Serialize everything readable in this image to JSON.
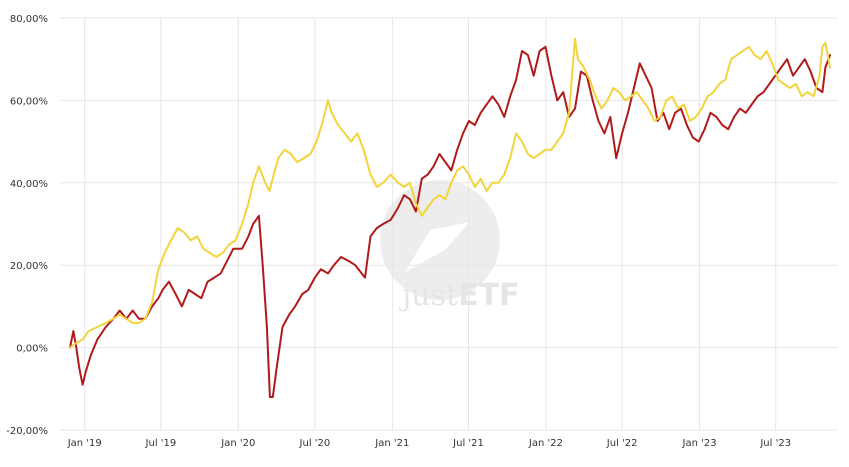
{
  "colors": {
    "series_red": "#b01a1a",
    "series_yellow": "#f2d43d",
    "grid": "#e6e6e6"
  },
  "watermark": {
    "prefix": "just",
    "suffix": "ETF"
  },
  "chart_data": {
    "type": "line",
    "title": "",
    "xlabel": "",
    "ylabel": "",
    "ylim": [
      -20,
      80
    ],
    "x_range": [
      "2018-11-27",
      "2023-11-07"
    ],
    "grid": true,
    "y_ticks": [
      {
        "value": 80,
        "label": "80,00%"
      },
      {
        "value": 60,
        "label": "60,00%"
      },
      {
        "value": 40,
        "label": "40,00%"
      },
      {
        "value": 20,
        "label": "20,00%"
      },
      {
        "value": 0,
        "label": "0,00%"
      },
      {
        "value": -20,
        "label": "-20,00%"
      }
    ],
    "x_ticks": [
      {
        "date": "2019-01-01",
        "label": "Jan '19"
      },
      {
        "date": "2019-07-01",
        "label": "Jul '19"
      },
      {
        "date": "2020-01-01",
        "label": "Jan '20"
      },
      {
        "date": "2020-07-01",
        "label": "Jul '20"
      },
      {
        "date": "2021-01-01",
        "label": "Jan '21"
      },
      {
        "date": "2021-07-01",
        "label": "Jul '21"
      },
      {
        "date": "2022-01-01",
        "label": "Jan '22"
      },
      {
        "date": "2022-07-01",
        "label": "Jul '22"
      },
      {
        "date": "2023-01-01",
        "label": "Jan '23"
      },
      {
        "date": "2023-07-01",
        "label": "Jul '23"
      }
    ],
    "series": [
      {
        "color": "#b01a1a",
        "points": [
          [
            "2018-11-27",
            0
          ],
          [
            "2018-12-05",
            4
          ],
          [
            "2018-12-12",
            0
          ],
          [
            "2018-12-19",
            -5
          ],
          [
            "2018-12-27",
            -9
          ],
          [
            "2019-01-03",
            -6
          ],
          [
            "2019-01-15",
            -2
          ],
          [
            "2019-01-31",
            2
          ],
          [
            "2019-02-20",
            5
          ],
          [
            "2019-03-10",
            7
          ],
          [
            "2019-03-25",
            9
          ],
          [
            "2019-04-10",
            7
          ],
          [
            "2019-04-25",
            9
          ],
          [
            "2019-05-10",
            7
          ],
          [
            "2019-05-25",
            7
          ],
          [
            "2019-06-10",
            10
          ],
          [
            "2019-06-25",
            12
          ],
          [
            "2019-07-05",
            14
          ],
          [
            "2019-07-20",
            16
          ],
          [
            "2019-08-05",
            13
          ],
          [
            "2019-08-20",
            10
          ],
          [
            "2019-09-05",
            14
          ],
          [
            "2019-09-20",
            13
          ],
          [
            "2019-10-05",
            12
          ],
          [
            "2019-10-20",
            16
          ],
          [
            "2019-11-05",
            17
          ],
          [
            "2019-11-20",
            18
          ],
          [
            "2019-12-05",
            21
          ],
          [
            "2019-12-20",
            24
          ],
          [
            "2020-01-10",
            24
          ],
          [
            "2020-01-25",
            27
          ],
          [
            "2020-02-05",
            30
          ],
          [
            "2020-02-19",
            32
          ],
          [
            "2020-02-28",
            20
          ],
          [
            "2020-03-09",
            5
          ],
          [
            "2020-03-16",
            -12
          ],
          [
            "2020-03-23",
            -12
          ],
          [
            "2020-04-01",
            -5
          ],
          [
            "2020-04-15",
            5
          ],
          [
            "2020-05-01",
            8
          ],
          [
            "2020-05-15",
            10
          ],
          [
            "2020-06-01",
            13
          ],
          [
            "2020-06-15",
            14
          ],
          [
            "2020-07-01",
            17
          ],
          [
            "2020-07-15",
            19
          ],
          [
            "2020-08-01",
            18
          ],
          [
            "2020-08-15",
            20
          ],
          [
            "2020-09-01",
            22
          ],
          [
            "2020-09-20",
            21
          ],
          [
            "2020-10-05",
            20
          ],
          [
            "2020-10-28",
            17
          ],
          [
            "2020-11-10",
            27
          ],
          [
            "2020-11-25",
            29
          ],
          [
            "2020-12-10",
            30
          ],
          [
            "2020-12-28",
            31
          ],
          [
            "2021-01-15",
            34
          ],
          [
            "2021-01-29",
            37
          ],
          [
            "2021-02-12",
            36
          ],
          [
            "2021-02-26",
            33
          ],
          [
            "2021-03-12",
            41
          ],
          [
            "2021-03-26",
            42
          ],
          [
            "2021-04-09",
            44
          ],
          [
            "2021-04-23",
            47
          ],
          [
            "2021-05-07",
            45
          ],
          [
            "2021-05-21",
            43
          ],
          [
            "2021-06-04",
            48
          ],
          [
            "2021-06-18",
            52
          ],
          [
            "2021-07-02",
            55
          ],
          [
            "2021-07-16",
            54
          ],
          [
            "2021-07-30",
            57
          ],
          [
            "2021-08-13",
            59
          ],
          [
            "2021-08-27",
            61
          ],
          [
            "2021-09-10",
            59
          ],
          [
            "2021-09-24",
            56
          ],
          [
            "2021-10-08",
            61
          ],
          [
            "2021-10-22",
            65
          ],
          [
            "2021-11-05",
            72
          ],
          [
            "2021-11-19",
            71
          ],
          [
            "2021-12-03",
            66
          ],
          [
            "2021-12-17",
            72
          ],
          [
            "2021-12-31",
            73
          ],
          [
            "2022-01-14",
            66
          ],
          [
            "2022-01-28",
            60
          ],
          [
            "2022-02-11",
            62
          ],
          [
            "2022-02-25",
            56
          ],
          [
            "2022-03-11",
            58
          ],
          [
            "2022-03-25",
            67
          ],
          [
            "2022-04-08",
            66
          ],
          [
            "2022-04-22",
            60
          ],
          [
            "2022-05-06",
            55
          ],
          [
            "2022-05-20",
            52
          ],
          [
            "2022-06-03",
            56
          ],
          [
            "2022-06-17",
            46
          ],
          [
            "2022-07-01",
            52
          ],
          [
            "2022-07-15",
            57
          ],
          [
            "2022-07-29",
            63
          ],
          [
            "2022-08-12",
            69
          ],
          [
            "2022-08-26",
            66
          ],
          [
            "2022-09-09",
            63
          ],
          [
            "2022-09-23",
            55
          ],
          [
            "2022-10-07",
            57
          ],
          [
            "2022-10-21",
            53
          ],
          [
            "2022-11-04",
            57
          ],
          [
            "2022-11-18",
            58
          ],
          [
            "2022-12-02",
            54
          ],
          [
            "2022-12-16",
            51
          ],
          [
            "2022-12-30",
            50
          ],
          [
            "2023-01-13",
            53
          ],
          [
            "2023-01-27",
            57
          ],
          [
            "2023-02-10",
            56
          ],
          [
            "2023-02-24",
            54
          ],
          [
            "2023-03-10",
            53
          ],
          [
            "2023-03-24",
            56
          ],
          [
            "2023-04-07",
            58
          ],
          [
            "2023-04-21",
            57
          ],
          [
            "2023-05-05",
            59
          ],
          [
            "2023-05-19",
            61
          ],
          [
            "2023-06-02",
            62
          ],
          [
            "2023-06-16",
            64
          ],
          [
            "2023-06-30",
            66
          ],
          [
            "2023-07-14",
            68
          ],
          [
            "2023-07-28",
            70
          ],
          [
            "2023-08-11",
            66
          ],
          [
            "2023-08-25",
            68
          ],
          [
            "2023-09-08",
            70
          ],
          [
            "2023-09-22",
            67
          ],
          [
            "2023-10-06",
            63
          ],
          [
            "2023-10-20",
            62
          ],
          [
            "2023-10-27",
            68
          ],
          [
            "2023-11-07",
            71
          ]
        ]
      },
      {
        "color": "#f2d43d",
        "points": [
          [
            "2018-11-27",
            0
          ],
          [
            "2018-12-10",
            1
          ],
          [
            "2018-12-27",
            2
          ],
          [
            "2019-01-10",
            4
          ],
          [
            "2019-01-31",
            5
          ],
          [
            "2019-02-20",
            6
          ],
          [
            "2019-03-10",
            7
          ],
          [
            "2019-03-25",
            8
          ],
          [
            "2019-04-10",
            7
          ],
          [
            "2019-04-25",
            6
          ],
          [
            "2019-05-10",
            6
          ],
          [
            "2019-05-25",
            7
          ],
          [
            "2019-06-10",
            11
          ],
          [
            "2019-06-25",
            19
          ],
          [
            "2019-07-10",
            23
          ],
          [
            "2019-07-25",
            26
          ],
          [
            "2019-08-10",
            29
          ],
          [
            "2019-08-25",
            28
          ],
          [
            "2019-09-10",
            26
          ],
          [
            "2019-09-25",
            27
          ],
          [
            "2019-10-10",
            24
          ],
          [
            "2019-10-25",
            23
          ],
          [
            "2019-11-10",
            22
          ],
          [
            "2019-11-25",
            23
          ],
          [
            "2019-12-10",
            25
          ],
          [
            "2019-12-25",
            26
          ],
          [
            "2020-01-10",
            30
          ],
          [
            "2020-01-25",
            35
          ],
          [
            "2020-02-05",
            40
          ],
          [
            "2020-02-19",
            44
          ],
          [
            "2020-03-05",
            40
          ],
          [
            "2020-03-15",
            38
          ],
          [
            "2020-03-25",
            42
          ],
          [
            "2020-04-05",
            46
          ],
          [
            "2020-04-20",
            48
          ],
          [
            "2020-05-05",
            47
          ],
          [
            "2020-05-20",
            45
          ],
          [
            "2020-06-05",
            46
          ],
          [
            "2020-06-20",
            47
          ],
          [
            "2020-07-05",
            50
          ],
          [
            "2020-07-20",
            55
          ],
          [
            "2020-08-01",
            60
          ],
          [
            "2020-08-10",
            57
          ],
          [
            "2020-08-25",
            54
          ],
          [
            "2020-09-10",
            52
          ],
          [
            "2020-09-25",
            50
          ],
          [
            "2020-10-10",
            52
          ],
          [
            "2020-10-25",
            48
          ],
          [
            "2020-11-10",
            42
          ],
          [
            "2020-11-25",
            39
          ],
          [
            "2020-12-10",
            40
          ],
          [
            "2020-12-28",
            42
          ],
          [
            "2021-01-15",
            40
          ],
          [
            "2021-01-29",
            39
          ],
          [
            "2021-02-12",
            40
          ],
          [
            "2021-02-26",
            35
          ],
          [
            "2021-03-12",
            32
          ],
          [
            "2021-03-26",
            34
          ],
          [
            "2021-04-09",
            36
          ],
          [
            "2021-04-23",
            37
          ],
          [
            "2021-05-07",
            36
          ],
          [
            "2021-05-21",
            40
          ],
          [
            "2021-06-04",
            43
          ],
          [
            "2021-06-18",
            44
          ],
          [
            "2021-07-02",
            42
          ],
          [
            "2021-07-16",
            39
          ],
          [
            "2021-07-30",
            41
          ],
          [
            "2021-08-13",
            38
          ],
          [
            "2021-08-27",
            40
          ],
          [
            "2021-09-10",
            40
          ],
          [
            "2021-09-24",
            42
          ],
          [
            "2021-10-08",
            46
          ],
          [
            "2021-10-22",
            52
          ],
          [
            "2021-11-05",
            50
          ],
          [
            "2021-11-19",
            47
          ],
          [
            "2021-12-03",
            46
          ],
          [
            "2021-12-17",
            47
          ],
          [
            "2021-12-31",
            48
          ],
          [
            "2022-01-14",
            48
          ],
          [
            "2022-01-28",
            50
          ],
          [
            "2022-02-11",
            52
          ],
          [
            "2022-02-25",
            57
          ],
          [
            "2022-03-04",
            66
          ],
          [
            "2022-03-11",
            75
          ],
          [
            "2022-03-18",
            70
          ],
          [
            "2022-04-01",
            68
          ],
          [
            "2022-04-15",
            65
          ],
          [
            "2022-04-29",
            61
          ],
          [
            "2022-05-13",
            58
          ],
          [
            "2022-05-27",
            60
          ],
          [
            "2022-06-10",
            63
          ],
          [
            "2022-06-24",
            62
          ],
          [
            "2022-07-08",
            60
          ],
          [
            "2022-07-22",
            61
          ],
          [
            "2022-08-05",
            62
          ],
          [
            "2022-08-19",
            60
          ],
          [
            "2022-09-02",
            58
          ],
          [
            "2022-09-16",
            55
          ],
          [
            "2022-09-30",
            56
          ],
          [
            "2022-10-14",
            60
          ],
          [
            "2022-10-28",
            61
          ],
          [
            "2022-11-11",
            58
          ],
          [
            "2022-11-25",
            59
          ],
          [
            "2022-12-09",
            55
          ],
          [
            "2022-12-23",
            56
          ],
          [
            "2023-01-06",
            58
          ],
          [
            "2023-01-20",
            61
          ],
          [
            "2023-02-03",
            62
          ],
          [
            "2023-02-17",
            64
          ],
          [
            "2023-03-03",
            65
          ],
          [
            "2023-03-17",
            70
          ],
          [
            "2023-03-31",
            71
          ],
          [
            "2023-04-14",
            72
          ],
          [
            "2023-04-28",
            73
          ],
          [
            "2023-05-12",
            71
          ],
          [
            "2023-05-26",
            70
          ],
          [
            "2023-06-09",
            72
          ],
          [
            "2023-06-23",
            69
          ],
          [
            "2023-07-07",
            65
          ],
          [
            "2023-07-21",
            64
          ],
          [
            "2023-08-04",
            63
          ],
          [
            "2023-08-18",
            64
          ],
          [
            "2023-09-01",
            61
          ],
          [
            "2023-09-15",
            62
          ],
          [
            "2023-09-29",
            61
          ],
          [
            "2023-10-13",
            66
          ],
          [
            "2023-10-20",
            73
          ],
          [
            "2023-10-27",
            74
          ],
          [
            "2023-11-07",
            68
          ]
        ]
      }
    ]
  }
}
